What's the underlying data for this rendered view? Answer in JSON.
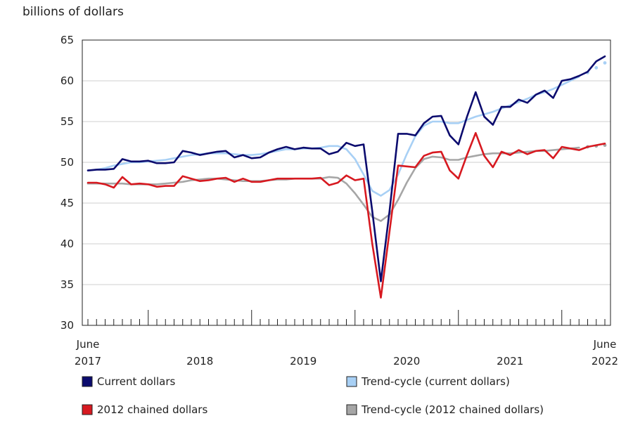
{
  "chart_data": {
    "type": "line",
    "ylabel": "billions of dollars",
    "ylim": [
      30,
      65
    ],
    "y_ticks": [
      30,
      35,
      40,
      45,
      50,
      55,
      60,
      65
    ],
    "x_range": [
      "2017-06",
      "2022-06"
    ],
    "x_tick_labels": [
      {
        "month": "2017-06",
        "lines": [
          "June",
          "2017"
        ]
      },
      {
        "month": "2018-07",
        "lines": [
          "2018"
        ]
      },
      {
        "month": "2019-07",
        "lines": [
          "2019"
        ]
      },
      {
        "month": "2020-07",
        "lines": [
          "2020"
        ]
      },
      {
        "month": "2021-07",
        "lines": [
          "2021"
        ]
      },
      {
        "month": "2022-06",
        "lines": [
          "June",
          "2022"
        ]
      }
    ],
    "major_tick_months": [
      "2018-01",
      "2019-01",
      "2020-01",
      "2021-01",
      "2022-01"
    ],
    "grid": true,
    "legend_position": "bottom",
    "series": [
      {
        "name": "Current dollars",
        "color": "#0b0b6e",
        "style": "solid",
        "values": [
          49.0,
          49.1,
          49.1,
          49.2,
          50.4,
          50.1,
          50.1,
          50.2,
          49.9,
          49.9,
          50.0,
          51.4,
          51.2,
          50.9,
          51.1,
          51.3,
          51.4,
          50.6,
          50.9,
          50.5,
          50.6,
          51.2,
          51.6,
          51.9,
          51.6,
          51.8,
          51.7,
          51.7,
          51.0,
          51.3,
          52.4,
          52.0,
          52.2,
          44.0,
          35.4,
          44.0,
          53.5,
          53.5,
          53.3,
          54.8,
          55.6,
          55.7,
          53.3,
          52.2,
          55.6,
          58.6,
          55.6,
          54.6,
          56.8,
          56.8,
          57.7,
          57.3,
          58.3,
          58.8,
          57.9,
          60.0,
          60.2,
          60.6,
          61.1,
          62.4,
          63.0
        ]
      },
      {
        "name": "Trend-cycle (current dollars)",
        "color": "#a8d0f5",
        "style": "solid",
        "projected_last": 3,
        "values": [
          49.0,
          49.1,
          49.3,
          49.6,
          49.8,
          50.0,
          50.0,
          50.1,
          50.2,
          50.3,
          50.5,
          50.7,
          50.9,
          51.0,
          51.1,
          51.1,
          51.1,
          51.0,
          50.9,
          50.9,
          51.0,
          51.2,
          51.4,
          51.6,
          51.6,
          51.7,
          51.7,
          51.8,
          52.0,
          52.0,
          51.6,
          50.4,
          48.5,
          46.5,
          45.9,
          46.6,
          48.5,
          51.0,
          53.2,
          54.5,
          55.0,
          55.0,
          54.8,
          54.8,
          55.2,
          55.6,
          55.9,
          56.2,
          56.6,
          57.0,
          57.4,
          57.8,
          58.3,
          58.6,
          59.0,
          59.5,
          60.0,
          60.5,
          61.0,
          61.6,
          62.2
        ]
      },
      {
        "name": "2012 chained dollars",
        "color": "#d71920",
        "style": "solid",
        "values": [
          47.5,
          47.5,
          47.3,
          46.9,
          48.2,
          47.3,
          47.4,
          47.3,
          47.0,
          47.1,
          47.1,
          48.3,
          48.0,
          47.7,
          47.8,
          48.0,
          48.1,
          47.6,
          48.0,
          47.6,
          47.6,
          47.8,
          48.0,
          48.0,
          48.0,
          48.0,
          48.0,
          48.1,
          47.2,
          47.5,
          48.4,
          47.8,
          48.0,
          40.0,
          33.4,
          41.5,
          49.6,
          49.5,
          49.4,
          50.8,
          51.2,
          51.3,
          49.0,
          48.0,
          50.9,
          53.6,
          50.8,
          49.4,
          51.3,
          50.9,
          51.5,
          51.0,
          51.4,
          51.5,
          50.5,
          51.9,
          51.7,
          51.5,
          51.9,
          52.1,
          52.3
        ]
      },
      {
        "name": "Trend-cycle (2012 chained dollars)",
        "color": "#a6a6a6",
        "style": "solid",
        "projected_last": 3,
        "values": [
          47.4,
          47.4,
          47.4,
          47.4,
          47.4,
          47.3,
          47.3,
          47.3,
          47.3,
          47.4,
          47.5,
          47.6,
          47.8,
          47.9,
          48.0,
          48.0,
          47.9,
          47.8,
          47.7,
          47.7,
          47.7,
          47.8,
          47.9,
          47.9,
          48.0,
          48.0,
          48.0,
          48.0,
          48.2,
          48.1,
          47.4,
          46.2,
          44.8,
          43.3,
          42.8,
          43.6,
          45.4,
          47.5,
          49.3,
          50.4,
          50.7,
          50.6,
          50.3,
          50.3,
          50.6,
          50.8,
          51.0,
          51.1,
          51.1,
          51.1,
          51.2,
          51.3,
          51.4,
          51.4,
          51.5,
          51.6,
          51.7,
          51.8,
          51.9,
          52.0,
          52.1
        ]
      }
    ]
  }
}
